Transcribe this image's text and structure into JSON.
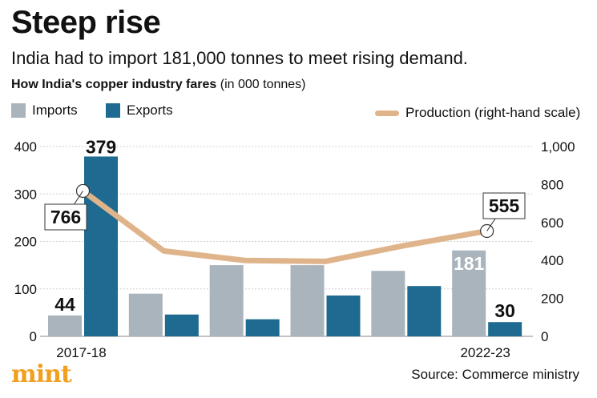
{
  "header": {
    "title": "Steep rise",
    "subtitle": "India had to import 181,000 tonnes to meet rising demand.",
    "caption_bold": "How India's copper industry fares",
    "caption_rest": " (in 000 tonnes)"
  },
  "legend": {
    "imports": "Imports",
    "exports": "Exports",
    "production": "Production (right-hand scale)"
  },
  "colors": {
    "imports": "#a9b4bd",
    "exports": "#1e6a91",
    "production": "#e0b48a",
    "grid": "#cfcfcf"
  },
  "chart_data": {
    "type": "bar",
    "categories": [
      "2017-18",
      "",
      "",
      "",
      "",
      "2022-23"
    ],
    "series": [
      {
        "name": "Imports",
        "values": [
          44,
          90,
          150,
          150,
          138,
          181
        ],
        "axis": "left"
      },
      {
        "name": "Exports",
        "values": [
          379,
          46,
          36,
          86,
          106,
          30
        ],
        "axis": "left"
      },
      {
        "name": "Production (right-hand scale)",
        "type": "line",
        "values": [
          766,
          450,
          400,
          395,
          480,
          555
        ],
        "axis": "right"
      }
    ],
    "data_labels": [
      {
        "series": "Imports",
        "index": 0,
        "text": "44"
      },
      {
        "series": "Exports",
        "index": 0,
        "text": "379"
      },
      {
        "series": "Imports",
        "index": 5,
        "text": "181"
      },
      {
        "series": "Exports",
        "index": 5,
        "text": "30"
      },
      {
        "series": "Production (right-hand scale)",
        "index": 0,
        "text": "766"
      },
      {
        "series": "Production (right-hand scale)",
        "index": 5,
        "text": "555"
      }
    ],
    "ylim_left": [
      0,
      400
    ],
    "yticks_left": [
      0,
      100,
      200,
      300,
      400
    ],
    "ylim_right": [
      0,
      1000
    ],
    "yticks_right": [
      "0",
      "200",
      "400",
      "600",
      "800",
      "1,000"
    ],
    "grid": true
  },
  "footer": {
    "logo": "mint",
    "source": "Source: Commerce ministry"
  }
}
